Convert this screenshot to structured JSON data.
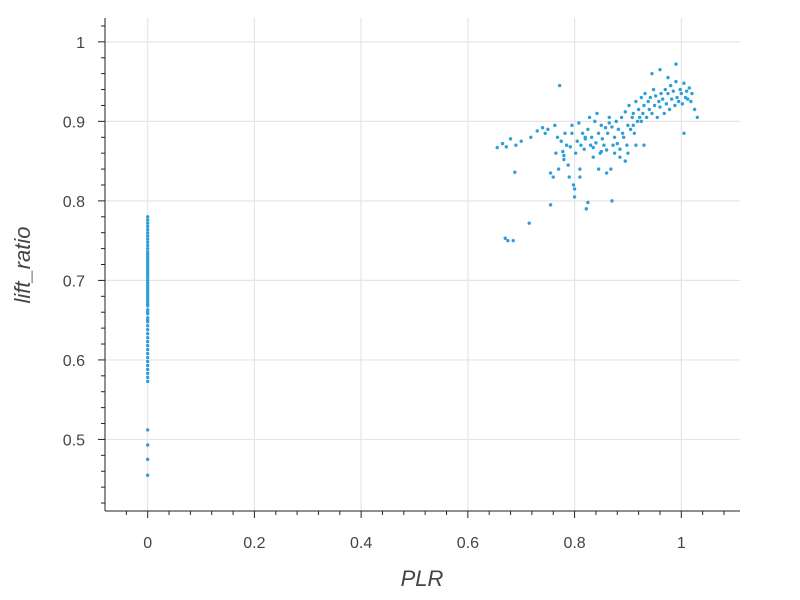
{
  "chart_data": {
    "type": "scatter",
    "title": "",
    "xlabel": "PLR",
    "ylabel": "lift_ratio",
    "xlim": [
      -0.08,
      1.11
    ],
    "ylim": [
      0.41,
      1.03
    ],
    "x_ticks": [
      0,
      0.2,
      0.4,
      0.6,
      0.8,
      1
    ],
    "x_tick_labels": [
      "0",
      "0.2",
      "0.4",
      "0.6",
      "0.8",
      "1"
    ],
    "y_ticks": [
      0.5,
      0.6,
      0.7,
      0.8,
      0.9,
      1.0
    ],
    "y_tick_labels": [
      "0.5",
      "0.6",
      "0.7",
      "0.8",
      "0.9",
      "1"
    ],
    "grid": true,
    "legend": "none",
    "point_color": "#2e9fd8",
    "series": [
      {
        "values_x": [
          0,
          0,
          0,
          0,
          0,
          0,
          0,
          0,
          0,
          0,
          0,
          0,
          0,
          0,
          0,
          0,
          0,
          0,
          0,
          0,
          0,
          0,
          0,
          0,
          0,
          0,
          0,
          0,
          0,
          0,
          0,
          0,
          0,
          0,
          0,
          0,
          0,
          0,
          0,
          0,
          0,
          0,
          0,
          0,
          0,
          0,
          0,
          0,
          0,
          0,
          0,
          0,
          0,
          0,
          0,
          0,
          0,
          0,
          0,
          0,
          0.655,
          0.665,
          0.672,
          0.68,
          0.688,
          0.69,
          0.7,
          0.718,
          0.73,
          0.74,
          0.745,
          0.75,
          0.755,
          0.76,
          0.763,
          0.765,
          0.768,
          0.77,
          0.772,
          0.775,
          0.778,
          0.78,
          0.782,
          0.785,
          0.788,
          0.79,
          0.792,
          0.795,
          0.798,
          0.8,
          0.802,
          0.805,
          0.808,
          0.81,
          0.812,
          0.815,
          0.818,
          0.82,
          0.822,
          0.825,
          0.828,
          0.83,
          0.832,
          0.835,
          0.838,
          0.84,
          0.842,
          0.845,
          0.848,
          0.85,
          0.852,
          0.855,
          0.858,
          0.86,
          0.862,
          0.865,
          0.868,
          0.87,
          0.872,
          0.875,
          0.878,
          0.88,
          0.882,
          0.885,
          0.888,
          0.89,
          0.892,
          0.895,
          0.898,
          0.9,
          0.902,
          0.905,
          0.908,
          0.91,
          0.912,
          0.915,
          0.918,
          0.92,
          0.922,
          0.925,
          0.928,
          0.93,
          0.932,
          0.935,
          0.938,
          0.94,
          0.942,
          0.945,
          0.948,
          0.95,
          0.952,
          0.955,
          0.958,
          0.96,
          0.962,
          0.965,
          0.968,
          0.97,
          0.972,
          0.975,
          0.978,
          0.98,
          0.982,
          0.985,
          0.988,
          0.99,
          0.992,
          0.995,
          0.998,
          1.0,
          1.002,
          1.005,
          1.008,
          1.01,
          1.012,
          1.015,
          1.018,
          1.02,
          1.025,
          1.03,
          0.67,
          0.675,
          0.685,
          0.715,
          0.755,
          0.8,
          0.82,
          0.825,
          0.845,
          0.86,
          0.87,
          0.885,
          0.9,
          0.915,
          0.93,
          0.945,
          0.96,
          0.975,
          0.99,
          1.005,
          0.78,
          0.795,
          0.81,
          0.835,
          0.85,
          0.865,
          0.875,
          0.895,
          0.91,
          0.925
        ],
        "values_y": [
          0.455,
          0.475,
          0.493,
          0.512,
          0.573,
          0.578,
          0.583,
          0.588,
          0.593,
          0.598,
          0.603,
          0.608,
          0.613,
          0.618,
          0.623,
          0.628,
          0.633,
          0.638,
          0.643,
          0.648,
          0.653,
          0.658,
          0.663,
          0.668,
          0.673,
          0.676,
          0.679,
          0.682,
          0.685,
          0.688,
          0.691,
          0.694,
          0.697,
          0.7,
          0.703,
          0.706,
          0.709,
          0.712,
          0.715,
          0.718,
          0.721,
          0.724,
          0.727,
          0.73,
          0.733,
          0.736,
          0.74,
          0.744,
          0.748,
          0.752,
          0.756,
          0.76,
          0.764,
          0.768,
          0.772,
          0.776,
          0.78,
          0.67,
          0.66,
          0.65,
          0.867,
          0.872,
          0.868,
          0.878,
          0.836,
          0.87,
          0.875,
          0.88,
          0.888,
          0.892,
          0.885,
          0.89,
          0.835,
          0.83,
          0.895,
          0.86,
          0.88,
          0.84,
          0.945,
          0.875,
          0.862,
          0.852,
          0.885,
          0.87,
          0.845,
          0.83,
          0.868,
          0.895,
          0.82,
          0.805,
          0.86,
          0.875,
          0.898,
          0.84,
          0.87,
          0.885,
          0.865,
          0.878,
          0.79,
          0.89,
          0.905,
          0.87,
          0.88,
          0.855,
          0.9,
          0.873,
          0.91,
          0.885,
          0.86,
          0.895,
          0.878,
          0.87,
          0.892,
          0.864,
          0.885,
          0.905,
          0.84,
          0.893,
          0.87,
          0.88,
          0.9,
          0.872,
          0.89,
          0.865,
          0.905,
          0.885,
          0.88,
          0.912,
          0.87,
          0.895,
          0.92,
          0.89,
          0.905,
          0.91,
          0.885,
          0.925,
          0.9,
          0.915,
          0.905,
          0.93,
          0.91,
          0.92,
          0.935,
          0.905,
          0.925,
          0.915,
          0.93,
          0.91,
          0.94,
          0.92,
          0.932,
          0.905,
          0.925,
          0.918,
          0.935,
          0.928,
          0.91,
          0.94,
          0.922,
          0.935,
          0.915,
          0.945,
          0.928,
          0.938,
          0.92,
          0.95,
          0.93,
          0.925,
          0.94,
          0.935,
          0.922,
          0.948,
          0.93,
          0.938,
          0.928,
          0.942,
          0.925,
          0.935,
          0.915,
          0.905,
          0.753,
          0.75,
          0.75,
          0.772,
          0.795,
          0.815,
          0.88,
          0.798,
          0.84,
          0.835,
          0.8,
          0.855,
          0.86,
          0.87,
          0.87,
          0.96,
          0.965,
          0.955,
          0.972,
          0.885,
          0.857,
          0.885,
          0.83,
          0.867,
          0.862,
          0.898,
          0.86,
          0.85,
          0.895,
          0.9
        ]
      }
    ]
  }
}
